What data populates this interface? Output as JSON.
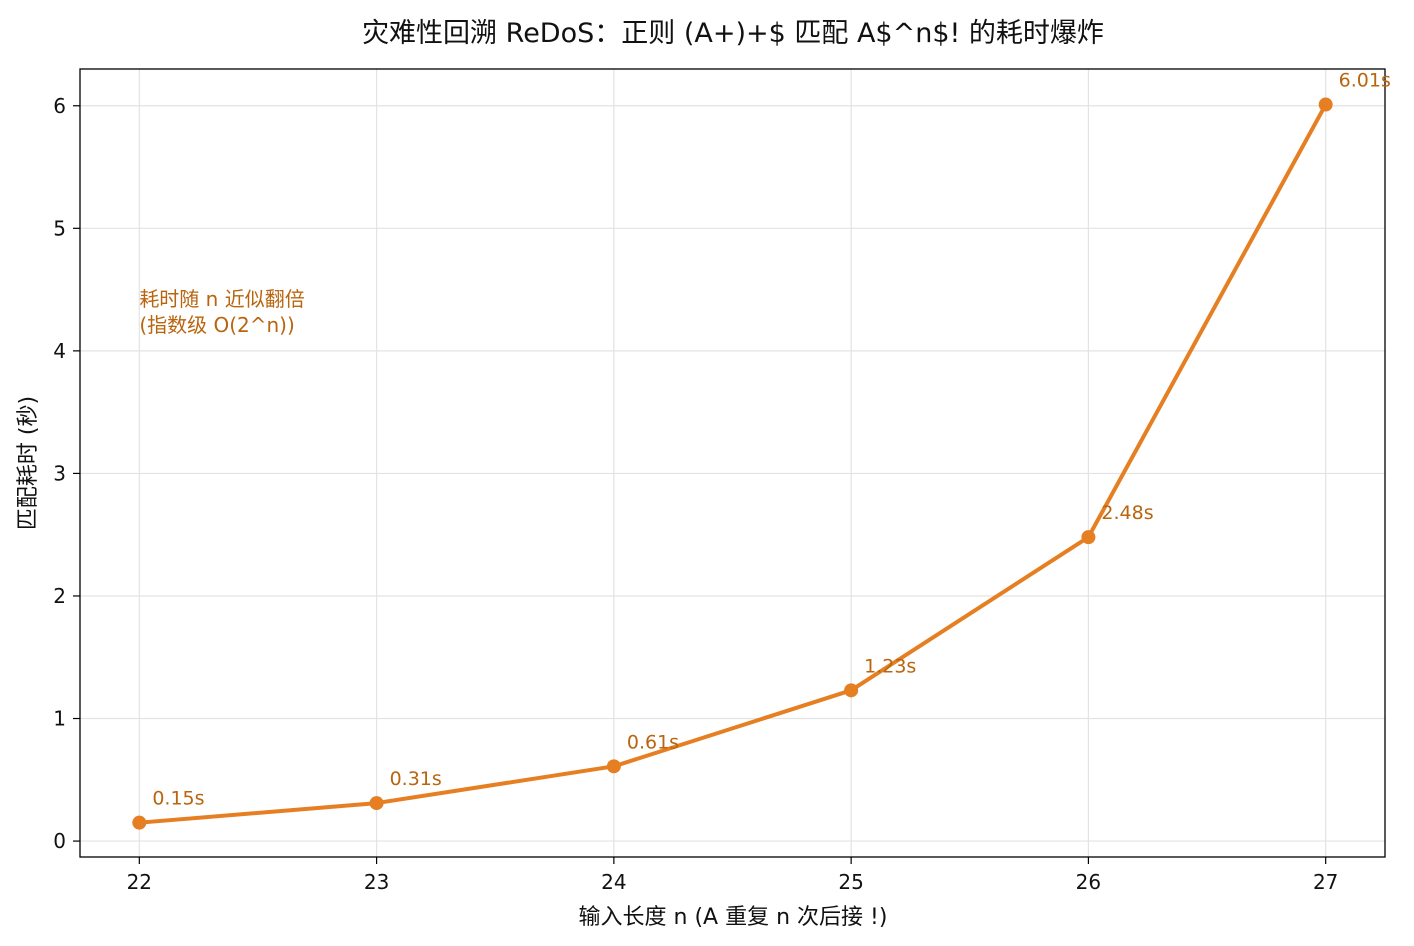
{
  "chart_data": {
    "type": "line",
    "title": "灾难性回溯 ReDoS：正则 (A+)+$ 匹配 A$^n$! 的耗时爆炸",
    "xlabel": "输入长度 n (A 重复 n 次后接 !)",
    "ylabel": "匹配耗时 (秒)",
    "x": [
      22,
      23,
      24,
      25,
      26,
      27
    ],
    "x_ticks": [
      "22",
      "23",
      "24",
      "25",
      "26",
      "27"
    ],
    "y_ticks": [
      "0",
      "1",
      "2",
      "3",
      "4",
      "5",
      "6"
    ],
    "xlim": [
      21.75,
      27.25
    ],
    "ylim": [
      -0.13,
      6.3
    ],
    "grid": true,
    "series": [
      {
        "values": [
          0.15,
          0.31,
          0.61,
          1.23,
          2.48,
          6.01
        ],
        "labels": [
          "0.15s",
          "0.31s",
          "0.61s",
          "1.23s",
          "2.48s",
          "6.01s"
        ],
        "color": "#e67e22"
      }
    ],
    "annotation": {
      "lines": [
        "耗时随 n 近似翻倍",
        "(指数级 O(2^n))"
      ],
      "color": "#b9650f",
      "anchor_x": 22,
      "anchor_y": 4.35
    },
    "label_color": "#b9650f"
  }
}
